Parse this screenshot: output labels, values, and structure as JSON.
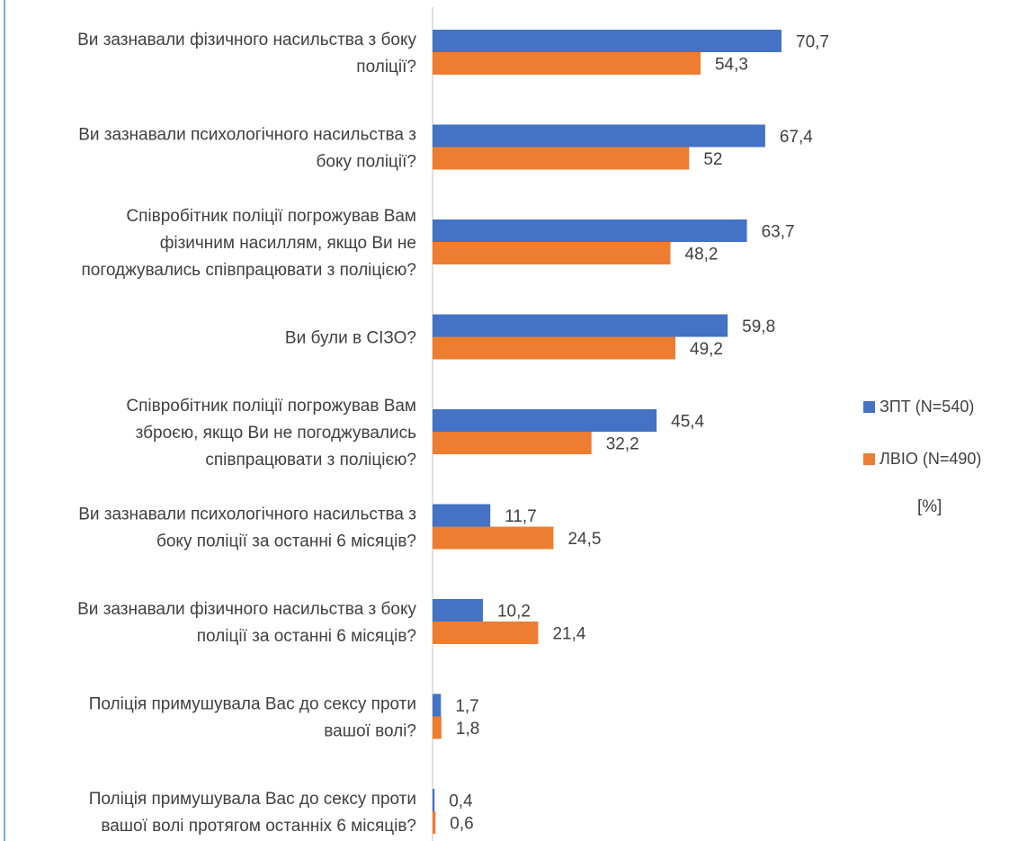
{
  "chart_data": {
    "type": "bar",
    "orientation": "horizontal",
    "categories": [
      [
        "Ви зазнавали фізичного насильства з боку",
        "поліції?"
      ],
      [
        "Ви зазнавали психологічного насильства з",
        "боку поліції?"
      ],
      [
        "Співробітник поліції погрожував Вам",
        "фізичним насиллям, якщо Ви не",
        "погоджувались співпрацювати з поліцією?"
      ],
      [
        "Ви були в СІЗО?"
      ],
      [
        "Співробітник поліції погрожував Вам",
        "зброєю, якщо Ви не погоджувались",
        "співпрацювати з поліцією?"
      ],
      [
        "Ви зазнавали психологічного насильства з",
        "боку поліції за останні 6 місяців?"
      ],
      [
        "Ви зазнавали фізичного насильства з боку",
        "поліції за останні 6 місяців?"
      ],
      [
        "Поліція примушувала Вас до сексу проти",
        "вашої волі?"
      ],
      [
        "Поліція примушувала Вас до сексу проти",
        "вашої волі протягом останніх 6 місяців?"
      ]
    ],
    "series": [
      {
        "name": "ЗПТ (N=540)",
        "color": "#4472c4",
        "values": [
          70.7,
          67.4,
          63.7,
          59.8,
          45.4,
          11.7,
          10.2,
          1.7,
          0.4
        ],
        "labels": [
          "70,7",
          "67,4",
          "63,7",
          "59,8",
          "45,4",
          "11,7",
          "10,2",
          "1,7",
          "0,4"
        ]
      },
      {
        "name": "ЛВІО (N=490)",
        "color": "#ed7d31",
        "values": [
          54.3,
          52,
          48.2,
          49.2,
          32.2,
          24.5,
          21.4,
          1.8,
          0.6
        ],
        "labels": [
          "54,3",
          "52",
          "48,2",
          "49,2",
          "32,2",
          "24,5",
          "21,4",
          "1,8",
          "0,6"
        ]
      }
    ],
    "unit_note": "[%]",
    "legend_position": "right",
    "axis_color": "#d9d9d9",
    "grid": false
  }
}
